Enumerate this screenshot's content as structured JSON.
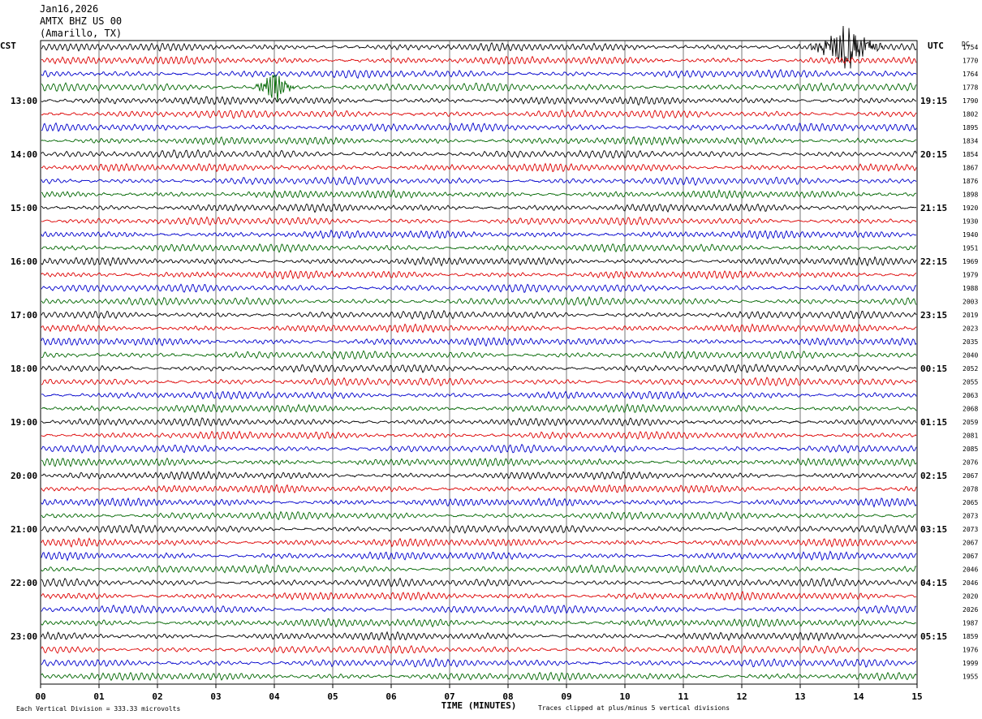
{
  "header": {
    "date": "Jan16,2026",
    "station": "AMTX BHZ US 00",
    "location": "(Amarillo, TX)"
  },
  "axis_labels": {
    "left_timezone": "CST",
    "right_timezone": "UTC",
    "dc_label": "DC",
    "xlabel": "TIME (MINUTES)"
  },
  "footer": {
    "scale_note": "Each Vertical Division =  333.33 microvolts",
    "clip_note": "Traces clipped at plus/minus 5 vertical divisions"
  },
  "colors": {
    "trace_cycle": [
      "#000000",
      "#dd0000",
      "#0000cc",
      "#006600"
    ],
    "grid": "#555555"
  },
  "chart_data": {
    "type": "line",
    "title": "AMTX BHZ US 00",
    "x_range": [
      0,
      15
    ],
    "x_ticks": [
      "00",
      "01",
      "02",
      "03",
      "04",
      "05",
      "06",
      "07",
      "08",
      "09",
      "10",
      "11",
      "12",
      "13",
      "14",
      "15"
    ],
    "rows": 48,
    "rows_per_hour": 4,
    "left_hour_labels": [
      "13:00",
      "14:00",
      "15:00",
      "16:00",
      "17:00",
      "18:00",
      "19:00",
      "20:00",
      "21:00",
      "22:00",
      "23:00"
    ],
    "right_hour_labels": [
      "19:15",
      "20:15",
      "21:15",
      "22:15",
      "23:15",
      "00:15",
      "01:15",
      "02:15",
      "03:15",
      "04:15",
      "05:15"
    ],
    "dc_offsets": [
      "1754",
      "1770",
      "1764",
      "1778",
      "1790",
      "1802",
      "1895",
      "1834",
      "1854",
      "1867",
      "1876",
      "1898",
      "1920",
      "1930",
      "1940",
      "1951",
      "1969",
      "1979",
      "1988",
      "2003",
      "2019",
      "2023",
      "2035",
      "2040",
      "2052",
      "2055",
      "2063",
      "2068",
      "2059",
      "2081",
      "2085",
      "2076",
      "2067",
      "2078",
      "2065",
      "2073",
      "2073",
      "2067",
      "2067",
      "2046",
      "2046",
      "2020",
      "2026",
      "1987",
      "1859",
      "1976",
      "1999",
      "1955"
    ],
    "events": [
      {
        "row": 3,
        "minute": 4.0,
        "amplitude": "large",
        "color": "green"
      },
      {
        "row": 0,
        "minute": 13.8,
        "amplitude": "clipped",
        "color": "black"
      }
    ]
  }
}
